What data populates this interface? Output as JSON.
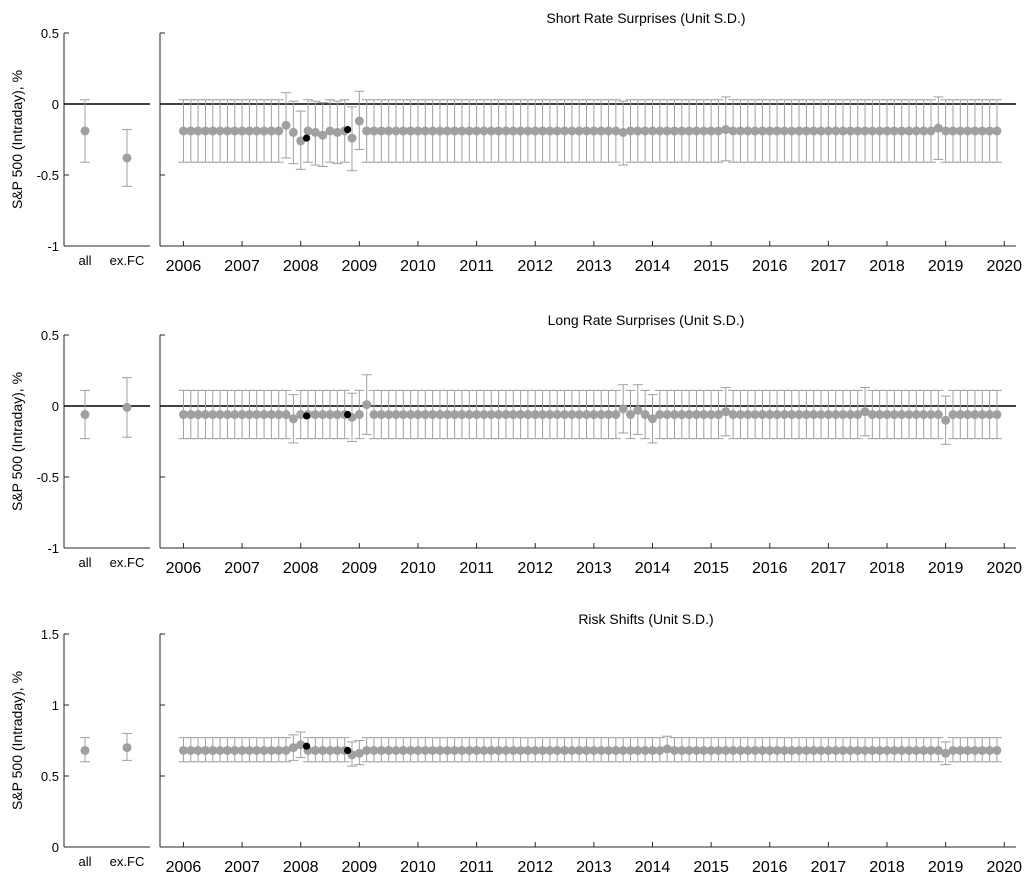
{
  "colors": {
    "grey": "#a0a0a0",
    "highlight": "#000000",
    "axis": "#262626",
    "zero_line": "#000000"
  },
  "chart_data": [
    {
      "type": "scatter",
      "title": "Short Rate Surprises (Unit S.D.)",
      "ylabel": "S&P 500 (Intraday), %",
      "ylim": [
        -1,
        0.5
      ],
      "yticks": [
        0.5,
        0,
        -0.5,
        -1
      ],
      "ytick_labels": [
        "0.5",
        "0",
        "-0.5",
        "-1"
      ],
      "zero_line": true,
      "summary": {
        "categories": [
          "all",
          "ex.FC"
        ],
        "values": [
          -0.19,
          -0.38
        ],
        "lower": [
          -0.41,
          -0.58
        ],
        "upper": [
          0.03,
          -0.18
        ]
      },
      "xlim": [
        2005.6,
        2020.2
      ],
      "xticks": [
        2006,
        2007,
        2008,
        2009,
        2010,
        2011,
        2012,
        2013,
        2014,
        2015,
        2016,
        2017,
        2018,
        2019,
        2020
      ],
      "xtick_labels": [
        "2006",
        "2007",
        "2008",
        "2009",
        "2010",
        "2011",
        "2012",
        "2013",
        "2014",
        "2015",
        "2016",
        "2017",
        "2018",
        "2019",
        "2020"
      ],
      "series_default": {
        "value": -0.19,
        "lower": -0.41,
        "upper": 0.03
      },
      "dates_start": 2006.0,
      "dates_step": 0.125,
      "dates_count": 112,
      "deviations": [
        {
          "x": 2007.75,
          "value": -0.15,
          "lower": -0.38,
          "upper": 0.08
        },
        {
          "x": 2007.875,
          "value": -0.2,
          "lower": -0.42,
          "upper": 0.02
        },
        {
          "x": 2008.0,
          "value": -0.26,
          "lower": -0.46,
          "upper": -0.05
        },
        {
          "x": 2008.25,
          "value": -0.2,
          "lower": -0.43,
          "upper": 0.02
        },
        {
          "x": 2008.375,
          "value": -0.22,
          "lower": -0.44,
          "upper": 0.01
        },
        {
          "x": 2008.625,
          "value": -0.2,
          "lower": -0.42,
          "upper": 0.02
        },
        {
          "x": 2008.875,
          "value": -0.24,
          "lower": -0.47,
          "upper": -0.02
        },
        {
          "x": 2009.0,
          "value": -0.12,
          "lower": -0.32,
          "upper": 0.09
        },
        {
          "x": 2013.5,
          "value": -0.2,
          "lower": -0.43,
          "upper": 0.02
        },
        {
          "x": 2015.25,
          "value": -0.18,
          "lower": -0.4,
          "upper": 0.05
        },
        {
          "x": 2018.875,
          "value": -0.17,
          "lower": -0.39,
          "upper": 0.05
        }
      ],
      "highlights": [
        {
          "x": 2008.1,
          "value": -0.24
        },
        {
          "x": 2008.8,
          "value": -0.18
        }
      ]
    },
    {
      "type": "scatter",
      "title": "Long Rate Surprises (Unit S.D.)",
      "ylabel": "S&P 500 (Intraday), %",
      "ylim": [
        -1,
        0.5
      ],
      "yticks": [
        0.5,
        0,
        -0.5,
        -1
      ],
      "ytick_labels": [
        "0.5",
        "0",
        "-0.5",
        "-1"
      ],
      "zero_line": true,
      "summary": {
        "categories": [
          "all",
          "ex.FC"
        ],
        "values": [
          -0.06,
          -0.01
        ],
        "lower": [
          -0.23,
          -0.22
        ],
        "upper": [
          0.11,
          0.2
        ]
      },
      "xlim": [
        2005.6,
        2020.2
      ],
      "xticks": [
        2006,
        2007,
        2008,
        2009,
        2010,
        2011,
        2012,
        2013,
        2014,
        2015,
        2016,
        2017,
        2018,
        2019,
        2020
      ],
      "xtick_labels": [
        "2006",
        "2007",
        "2008",
        "2009",
        "2010",
        "2011",
        "2012",
        "2013",
        "2014",
        "2015",
        "2016",
        "2017",
        "2018",
        "2019",
        "2020"
      ],
      "series_default": {
        "value": -0.06,
        "lower": -0.23,
        "upper": 0.11
      },
      "dates_start": 2006.0,
      "dates_step": 0.125,
      "dates_count": 112,
      "deviations": [
        {
          "x": 2007.875,
          "value": -0.09,
          "lower": -0.26,
          "upper": 0.08
        },
        {
          "x": 2008.875,
          "value": -0.08,
          "lower": -0.25,
          "upper": 0.09
        },
        {
          "x": 2009.125,
          "value": 0.01,
          "lower": -0.2,
          "upper": 0.22
        },
        {
          "x": 2013.5,
          "value": -0.02,
          "lower": -0.19,
          "upper": 0.15
        },
        {
          "x": 2013.75,
          "value": -0.03,
          "lower": -0.2,
          "upper": 0.15
        },
        {
          "x": 2014.0,
          "value": -0.09,
          "lower": -0.26,
          "upper": 0.08
        },
        {
          "x": 2015.25,
          "value": -0.04,
          "lower": -0.21,
          "upper": 0.13
        },
        {
          "x": 2017.625,
          "value": -0.04,
          "lower": -0.21,
          "upper": 0.13
        },
        {
          "x": 2019.0,
          "value": -0.1,
          "lower": -0.27,
          "upper": 0.07
        }
      ],
      "highlights": [
        {
          "x": 2008.1,
          "value": -0.07
        },
        {
          "x": 2008.8,
          "value": -0.06
        }
      ]
    },
    {
      "type": "scatter",
      "title": "Risk Shifts (Unit S.D.)",
      "ylabel": "S&P 500 (Intraday), %",
      "ylim": [
        0,
        1.5
      ],
      "yticks": [
        1.5,
        1,
        0.5,
        0
      ],
      "ytick_labels": [
        "1.5",
        "1",
        "0.5",
        "0"
      ],
      "zero_line": false,
      "summary": {
        "categories": [
          "all",
          "ex.FC"
        ],
        "values": [
          0.68,
          0.7
        ],
        "lower": [
          0.6,
          0.61
        ],
        "upper": [
          0.77,
          0.8
        ]
      },
      "xlim": [
        2005.6,
        2020.2
      ],
      "xticks": [
        2006,
        2007,
        2008,
        2009,
        2010,
        2011,
        2012,
        2013,
        2014,
        2015,
        2016,
        2017,
        2018,
        2019,
        2020
      ],
      "xtick_labels": [
        "2006",
        "2007",
        "2008",
        "2009",
        "2010",
        "2011",
        "2012",
        "2013",
        "2014",
        "2015",
        "2016",
        "2017",
        "2018",
        "2019",
        "2020"
      ],
      "series_default": {
        "value": 0.68,
        "lower": 0.6,
        "upper": 0.77
      },
      "dates_start": 2006.0,
      "dates_step": 0.125,
      "dates_count": 112,
      "deviations": [
        {
          "x": 2007.875,
          "value": 0.7,
          "lower": 0.61,
          "upper": 0.79
        },
        {
          "x": 2008.0,
          "value": 0.72,
          "lower": 0.63,
          "upper": 0.81
        },
        {
          "x": 2008.875,
          "value": 0.65,
          "lower": 0.57,
          "upper": 0.74
        },
        {
          "x": 2009.0,
          "value": 0.66,
          "lower": 0.58,
          "upper": 0.75
        },
        {
          "x": 2014.25,
          "value": 0.69,
          "lower": 0.6,
          "upper": 0.78
        },
        {
          "x": 2019.0,
          "value": 0.66,
          "lower": 0.58,
          "upper": 0.74
        }
      ],
      "highlights": [
        {
          "x": 2008.1,
          "value": 0.71
        },
        {
          "x": 2008.8,
          "value": 0.68
        }
      ]
    }
  ]
}
